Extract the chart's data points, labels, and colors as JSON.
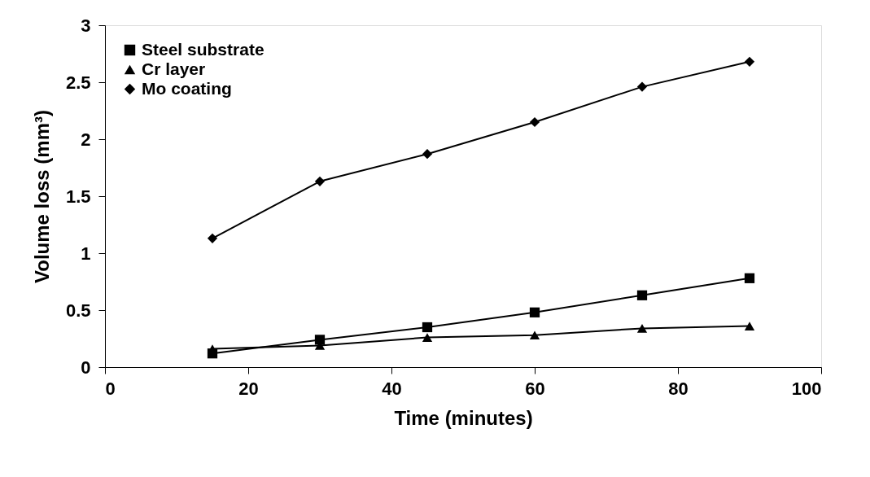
{
  "chart_data": {
    "type": "line",
    "xlabel": "Time (minutes)",
    "ylabel": "Volume loss (mm³)",
    "x": [
      15,
      30,
      45,
      60,
      75,
      90
    ],
    "series": [
      {
        "name": "Steel substrate",
        "color": "#000000",
        "marker": "square",
        "values": [
          0.12,
          0.24,
          0.35,
          0.48,
          0.63,
          0.78
        ]
      },
      {
        "name": "Cr layer",
        "color": "#000000",
        "marker": "triangle",
        "values": [
          0.16,
          0.19,
          0.26,
          0.28,
          0.34,
          0.36
        ]
      },
      {
        "name": "Mo coating",
        "color": "#000000",
        "marker": "diamond",
        "values": [
          1.13,
          1.63,
          1.87,
          2.15,
          2.46,
          2.68
        ]
      }
    ],
    "xlim": [
      0,
      100
    ],
    "xticks": [
      0,
      20,
      40,
      60,
      80,
      100
    ],
    "ylim": [
      0,
      3
    ],
    "yticks": [
      0,
      0.5,
      1,
      1.5,
      2,
      2.5,
      3
    ],
    "grid": false,
    "legend": "top left",
    "line_style": "solid"
  }
}
